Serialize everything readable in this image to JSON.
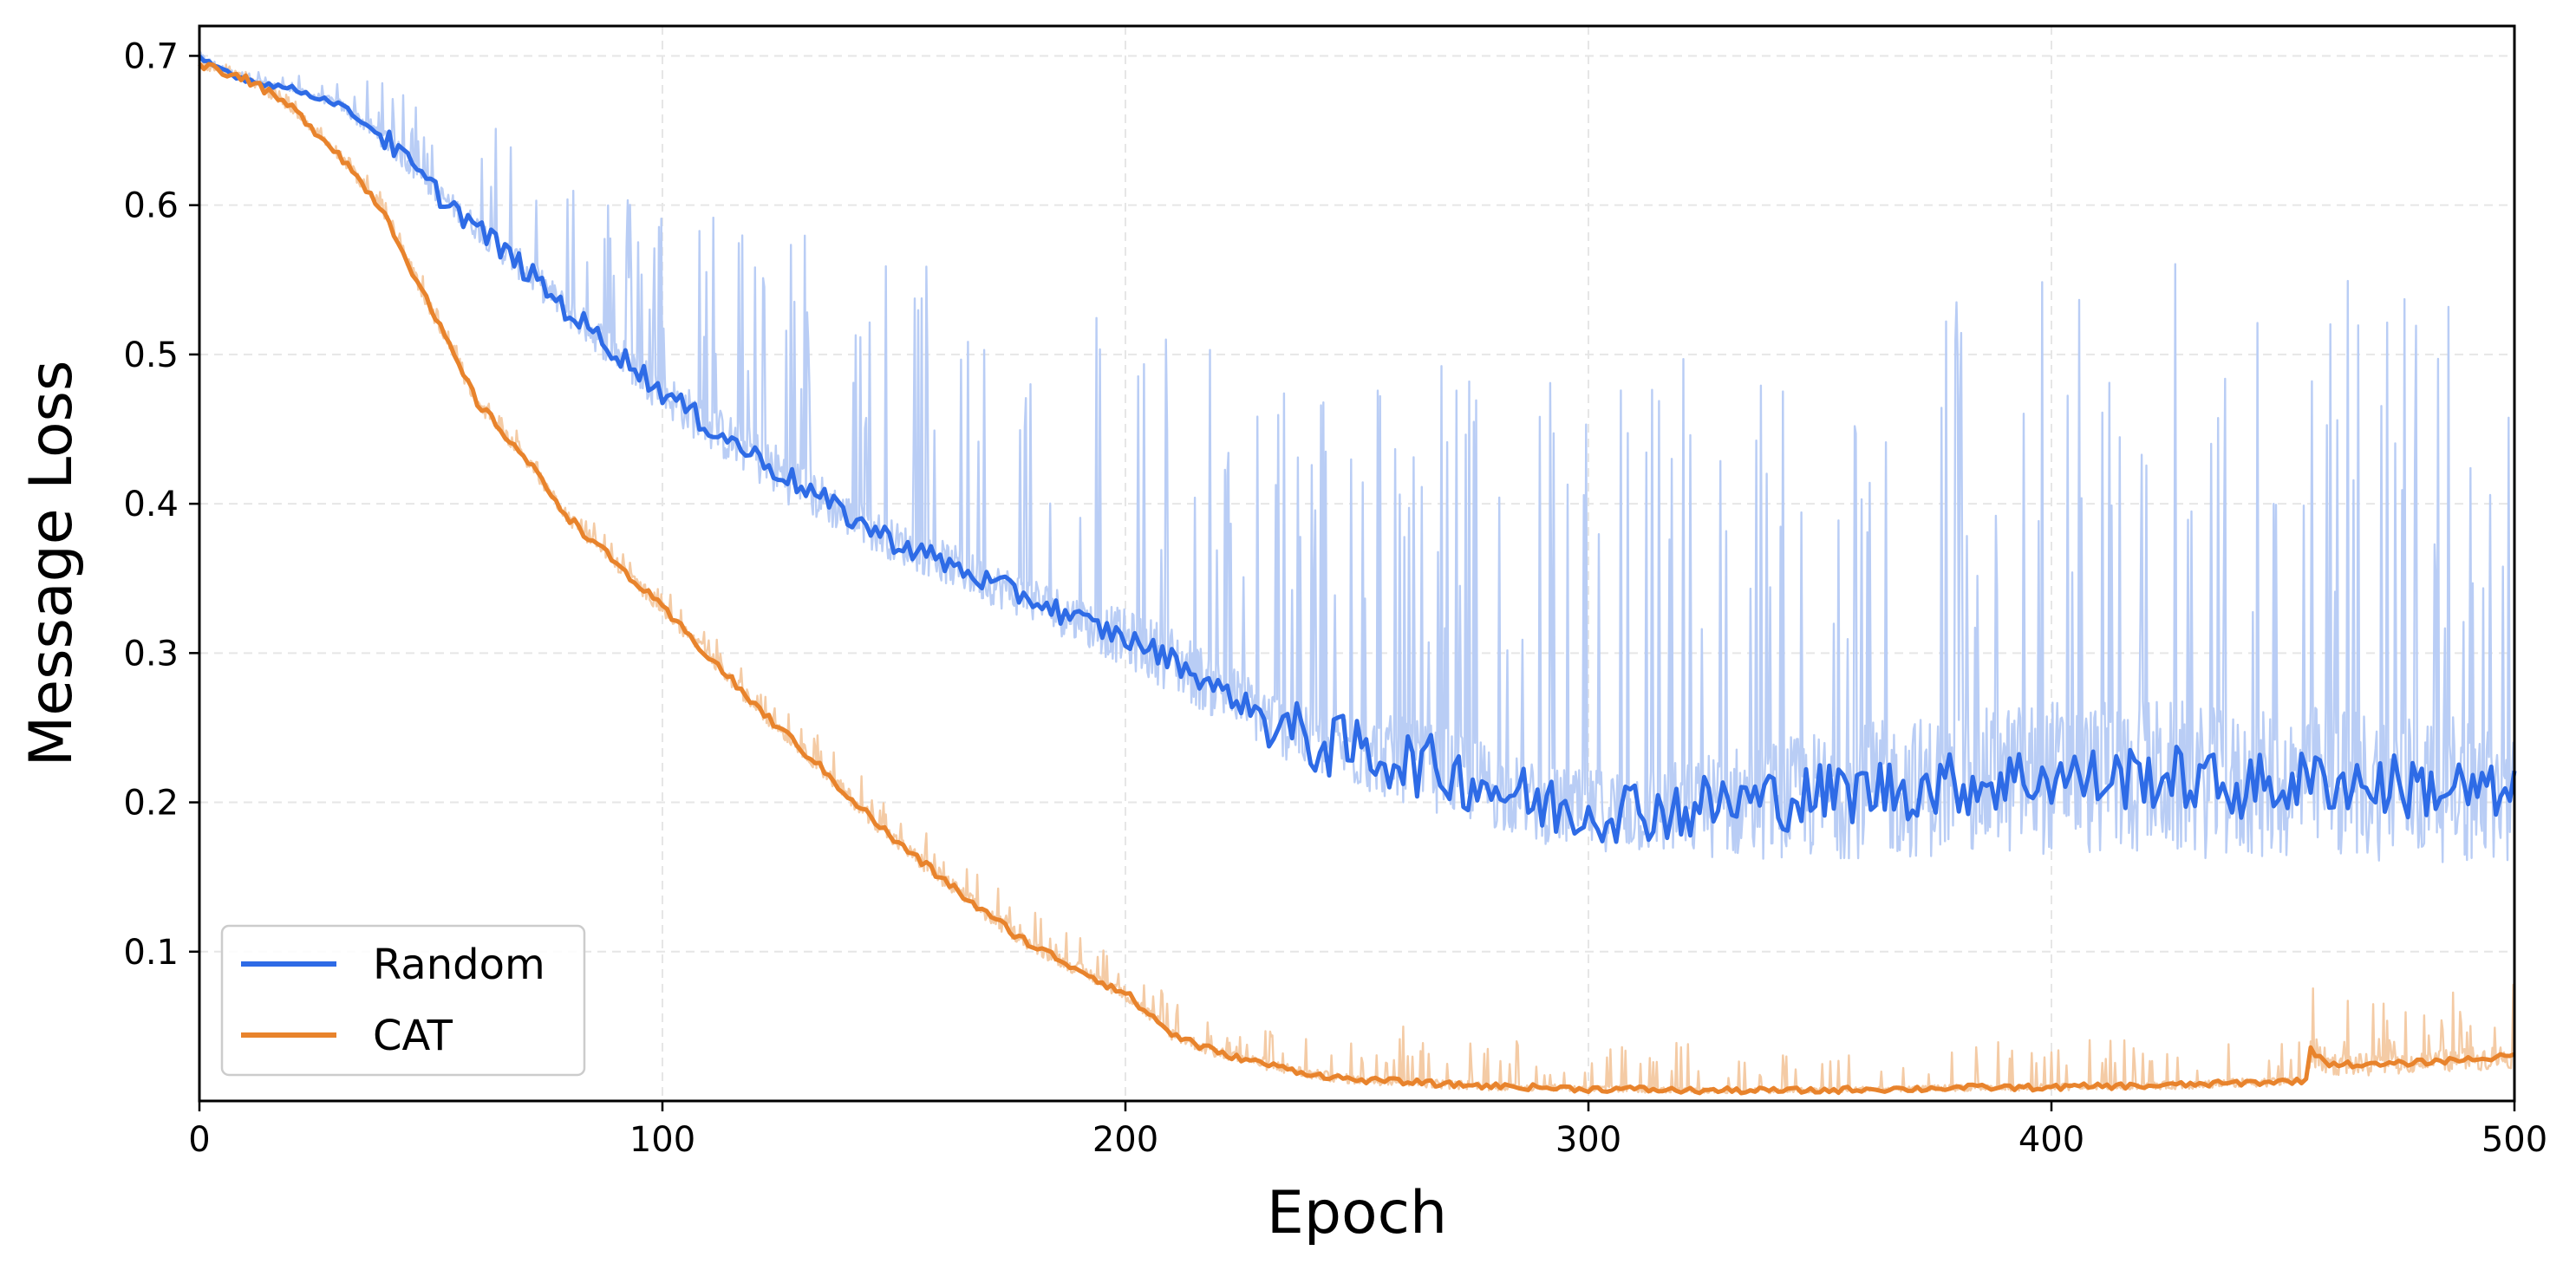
{
  "chart_data": {
    "type": "line",
    "title": "",
    "xlabel": "Epoch",
    "ylabel": "Message Loss",
    "xlim": [
      0,
      500
    ],
    "ylim": [
      0.0,
      0.72
    ],
    "xticks": [
      0,
      100,
      200,
      300,
      400,
      500
    ],
    "xtick_labels": [
      "0",
      "100",
      "200",
      "300",
      "400",
      "500"
    ],
    "yticks": [
      0.1,
      0.2,
      0.3,
      0.4,
      0.5,
      0.6,
      0.7
    ],
    "ytick_labels": [
      "0.1",
      "0.2",
      "0.3",
      "0.4",
      "0.5",
      "0.6",
      "0.7"
    ],
    "grid": true,
    "legend_position": "lower-left",
    "series": [
      {
        "name": "Random",
        "color": "#2e6be6",
        "raw_color": "#b9cdf5",
        "x": [
          0,
          10,
          20,
          30,
          40,
          50,
          60,
          70,
          80,
          90,
          100,
          110,
          120,
          130,
          140,
          150,
          160,
          170,
          180,
          190,
          200,
          210,
          220,
          230,
          240,
          250,
          260,
          270,
          280,
          290,
          300,
          310,
          320,
          330,
          340,
          350,
          360,
          370,
          380,
          390,
          400,
          410,
          420,
          430,
          440,
          450,
          460,
          470,
          480,
          490,
          500
        ],
        "y": [
          0.698,
          0.684,
          0.678,
          0.668,
          0.645,
          0.612,
          0.585,
          0.558,
          0.528,
          0.502,
          0.475,
          0.452,
          0.432,
          0.412,
          0.392,
          0.375,
          0.362,
          0.348,
          0.336,
          0.322,
          0.31,
          0.296,
          0.276,
          0.258,
          0.24,
          0.235,
          0.228,
          0.22,
          0.21,
          0.198,
          0.195,
          0.196,
          0.195,
          0.2,
          0.202,
          0.205,
          0.208,
          0.21,
          0.212,
          0.215,
          0.218,
          0.215,
          0.218,
          0.215,
          0.21,
          0.212,
          0.215,
          0.212,
          0.21,
          0.208,
          0.2
        ],
        "raw_max": [
          0.7,
          0.69,
          0.688,
          0.685,
          0.682,
          0.674,
          0.67,
          0.658,
          0.64,
          0.61,
          0.61,
          0.605,
          0.6,
          0.59,
          0.575,
          0.57,
          0.565,
          0.56,
          0.555,
          0.55,
          0.535,
          0.53,
          0.5,
          0.5,
          0.49,
          0.5,
          0.5,
          0.5,
          0.52,
          0.5,
          0.52,
          0.5,
          0.52,
          0.48,
          0.5,
          0.52,
          0.5,
          0.52,
          0.55,
          0.54,
          0.57,
          0.56,
          0.56,
          0.57,
          0.55,
          0.58,
          0.56,
          0.55,
          0.58,
          0.55,
          0.54
        ],
        "raw_min": [
          0.69,
          0.682,
          0.675,
          0.662,
          0.632,
          0.6,
          0.57,
          0.54,
          0.51,
          0.48,
          0.45,
          0.425,
          0.402,
          0.382,
          0.368,
          0.352,
          0.338,
          0.324,
          0.31,
          0.294,
          0.278,
          0.258,
          0.24,
          0.222,
          0.204,
          0.19,
          0.18,
          0.17,
          0.162,
          0.155,
          0.15,
          0.145,
          0.14,
          0.137,
          0.135,
          0.133,
          0.132,
          0.131,
          0.13,
          0.13,
          0.13,
          0.129,
          0.129,
          0.128,
          0.128,
          0.128,
          0.127,
          0.127,
          0.126,
          0.126,
          0.126
        ]
      },
      {
        "name": "CAT",
        "color": "#e8832c",
        "raw_color": "#f4cba5",
        "x": [
          0,
          10,
          20,
          30,
          40,
          50,
          60,
          70,
          80,
          90,
          100,
          110,
          120,
          130,
          140,
          150,
          160,
          170,
          180,
          190,
          200,
          210,
          220,
          230,
          240,
          250,
          260,
          270,
          280,
          290,
          300,
          310,
          320,
          330,
          340,
          350,
          360,
          370,
          380,
          390,
          400,
          410,
          420,
          430,
          440,
          450,
          455,
          456,
          460,
          470,
          480,
          490,
          500
        ],
        "y": [
          0.695,
          0.685,
          0.665,
          0.635,
          0.595,
          0.53,
          0.468,
          0.432,
          0.39,
          0.36,
          0.33,
          0.298,
          0.265,
          0.236,
          0.205,
          0.175,
          0.15,
          0.125,
          0.104,
          0.088,
          0.072,
          0.045,
          0.032,
          0.025,
          0.018,
          0.014,
          0.013,
          0.011,
          0.01,
          0.009,
          0.008,
          0.008,
          0.007,
          0.007,
          0.007,
          0.007,
          0.008,
          0.008,
          0.009,
          0.009,
          0.009,
          0.01,
          0.01,
          0.011,
          0.012,
          0.013,
          0.014,
          0.034,
          0.025,
          0.024,
          0.026,
          0.028,
          0.03
        ],
        "raw_max": [
          0.7,
          0.69,
          0.672,
          0.645,
          0.605,
          0.542,
          0.48,
          0.445,
          0.402,
          0.375,
          0.345,
          0.315,
          0.285,
          0.255,
          0.228,
          0.2,
          0.175,
          0.148,
          0.128,
          0.11,
          0.095,
          0.07,
          0.055,
          0.048,
          0.05,
          0.042,
          0.052,
          0.04,
          0.045,
          0.035,
          0.042,
          0.035,
          0.04,
          0.03,
          0.035,
          0.03,
          0.032,
          0.035,
          0.04,
          0.045,
          0.035,
          0.042,
          0.04,
          0.038,
          0.042,
          0.04,
          0.05,
          0.105,
          0.075,
          0.065,
          0.07,
          0.075,
          0.085
        ],
        "raw_min": [
          0.69,
          0.68,
          0.66,
          0.628,
          0.588,
          0.522,
          0.46,
          0.425,
          0.382,
          0.352,
          0.322,
          0.29,
          0.256,
          0.228,
          0.196,
          0.166,
          0.14,
          0.116,
          0.096,
          0.08,
          0.064,
          0.038,
          0.025,
          0.018,
          0.012,
          0.009,
          0.008,
          0.006,
          0.005,
          0.005,
          0.004,
          0.004,
          0.004,
          0.004,
          0.004,
          0.004,
          0.005,
          0.005,
          0.005,
          0.005,
          0.005,
          0.006,
          0.006,
          0.006,
          0.007,
          0.008,
          0.009,
          0.015,
          0.012,
          0.012,
          0.014,
          0.015,
          0.016
        ]
      }
    ]
  }
}
